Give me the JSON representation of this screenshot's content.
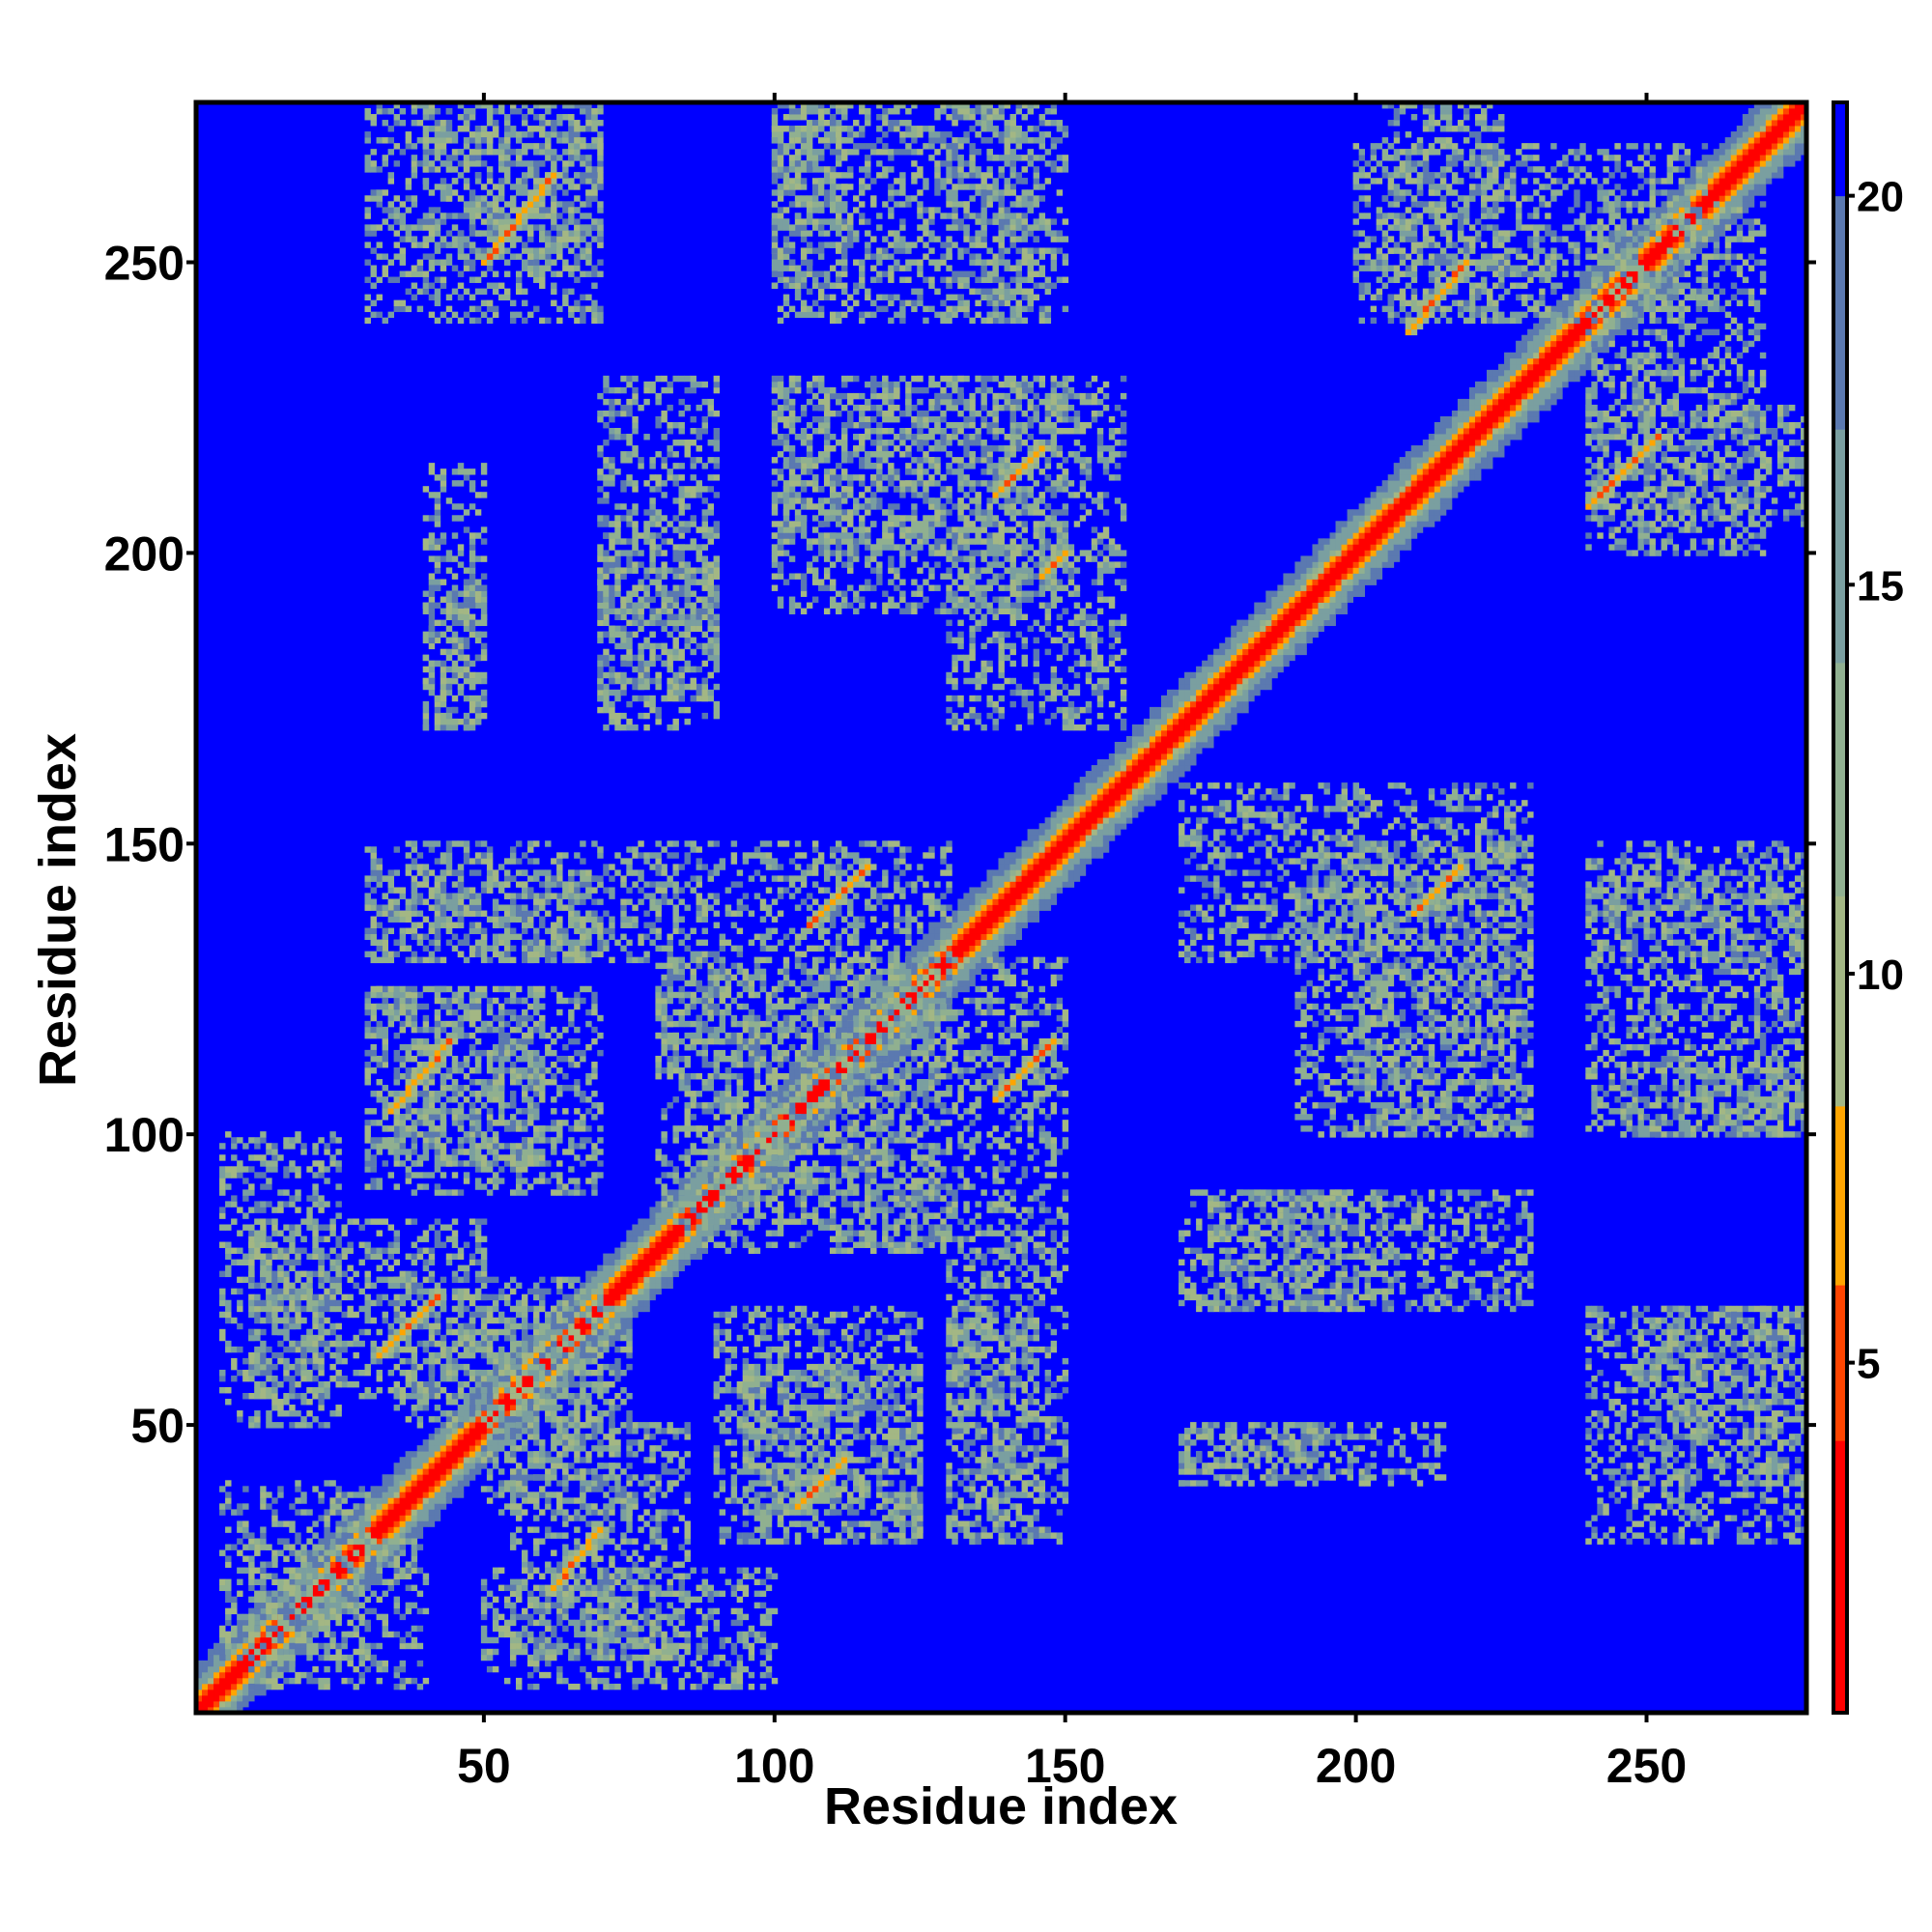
{
  "chart_data": {
    "type": "heatmap",
    "title": "",
    "xlabel": "Residue index",
    "ylabel": "Residue index",
    "n_residues": 277,
    "xlim": [
      0.5,
      277.5
    ],
    "ylim": [
      0.5,
      277.5
    ],
    "x_ticks": [
      50,
      100,
      150,
      200,
      250
    ],
    "y_ticks": [
      50,
      100,
      150,
      200,
      250
    ],
    "x_tick_labels": [
      "50",
      "100",
      "150",
      "200",
      "250"
    ],
    "y_tick_labels": [
      "50",
      "100",
      "150",
      "200",
      "250"
    ],
    "grid": false,
    "value_description": "pairwise residue distance",
    "colorbar": {
      "position": "right",
      "range": [
        0.5,
        21.2
      ],
      "ticks": [
        5,
        10,
        15,
        20
      ],
      "tick_labels": [
        "5",
        "10",
        "15",
        "20"
      ],
      "colors": [
        {
          "max": 4,
          "color": "#ff0000"
        },
        {
          "max": 6,
          "color": "#ff4500"
        },
        {
          "max": 8.3,
          "color": "#ffa500"
        },
        {
          "max": 11,
          "color": "#a3b784"
        },
        {
          "max": 14,
          "color": "#90b090"
        },
        {
          "max": 17,
          "color": "#7a9fa0"
        },
        {
          "max": 20,
          "color": "#5b79b0"
        },
        {
          "max": 999,
          "color": "#0000ff"
        }
      ]
    },
    "contact_bands": [
      {
        "x": [
          32,
          42
        ],
        "y": [
          62,
          72
        ]
      },
      {
        "x": [
          62,
          70
        ],
        "y": [
          22,
          32
        ]
      },
      {
        "x": [
          104,
          112
        ],
        "y": [
          36,
          44
        ]
      },
      {
        "x": [
          34,
          44
        ],
        "y": [
          104,
          116
        ]
      },
      {
        "x": [
          138,
          148
        ],
        "y": [
          106,
          116
        ]
      },
      {
        "x": [
          106,
          116
        ],
        "y": [
          136,
          146
        ]
      },
      {
        "x": [
          138,
          146
        ],
        "y": [
          210,
          218
        ]
      },
      {
        "x": [
          210,
          218
        ],
        "y": [
          138,
          146
        ]
      },
      {
        "x": [
          209,
          219
        ],
        "y": [
          238,
          250
        ]
      },
      {
        "x": [
          240,
          252
        ],
        "y": [
          208,
          220
        ]
      },
      {
        "x": [
          50,
          62
        ],
        "y": [
          250,
          265
        ]
      },
      {
        "x": [
          146,
          150
        ],
        "y": [
          196,
          200
        ]
      }
    ],
    "contact_regions": [
      {
        "x": [
          30,
          70
        ],
        "y": [
          240,
          277
        ]
      },
      {
        "x": [
          100,
          112
        ],
        "y": [
          245,
          277
        ]
      },
      {
        "x": [
          130,
          145
        ],
        "y": [
          240,
          277
        ]
      },
      {
        "x": [
          205,
          225
        ],
        "y": [
          240,
          277
        ]
      },
      {
        "x": [
          240,
          270
        ],
        "y": [
          200,
          260
        ]
      },
      {
        "x": [
          100,
          150
        ],
        "y": [
          190,
          230
        ]
      },
      {
        "x": [
          70,
          90
        ],
        "y": [
          175,
          205
        ]
      },
      {
        "x": [
          40,
          50
        ],
        "y": [
          170,
          195
        ]
      },
      {
        "x": [
          30,
          70
        ],
        "y": [
          130,
          145
        ]
      },
      {
        "x": [
          80,
          130
        ],
        "y": [
          110,
          150
        ]
      },
      {
        "x": [
          30,
          70
        ],
        "y": [
          90,
          125
        ]
      },
      {
        "x": [
          85,
          130
        ],
        "y": [
          80,
          110
        ]
      },
      {
        "x": [
          10,
          50
        ],
        "y": [
          55,
          85
        ]
      },
      {
        "x": [
          50,
          75
        ],
        "y": [
          35,
          70
        ]
      },
      {
        "x": [
          95,
          125
        ],
        "y": [
          30,
          60
        ]
      },
      {
        "x": [
          130,
          150
        ],
        "y": [
          30,
          80
        ]
      },
      {
        "x": [
          170,
          230
        ],
        "y": [
          70,
          90
        ]
      },
      {
        "x": [
          170,
          215
        ],
        "y": [
          40,
          50
        ]
      },
      {
        "x": [
          200,
          230
        ],
        "y": [
          100,
          160
        ]
      },
      {
        "x": [
          240,
          277
        ],
        "y": [
          100,
          150
        ]
      },
      {
        "x": [
          250,
          277
        ],
        "y": [
          40,
          70
        ]
      },
      {
        "x": [
          10,
          40
        ],
        "y": [
          5,
          30
        ]
      },
      {
        "x": [
          50,
          100
        ],
        "y": [
          5,
          25
        ]
      },
      {
        "x": [
          170,
          200
        ],
        "y": [
          130,
          160
        ]
      }
    ]
  }
}
